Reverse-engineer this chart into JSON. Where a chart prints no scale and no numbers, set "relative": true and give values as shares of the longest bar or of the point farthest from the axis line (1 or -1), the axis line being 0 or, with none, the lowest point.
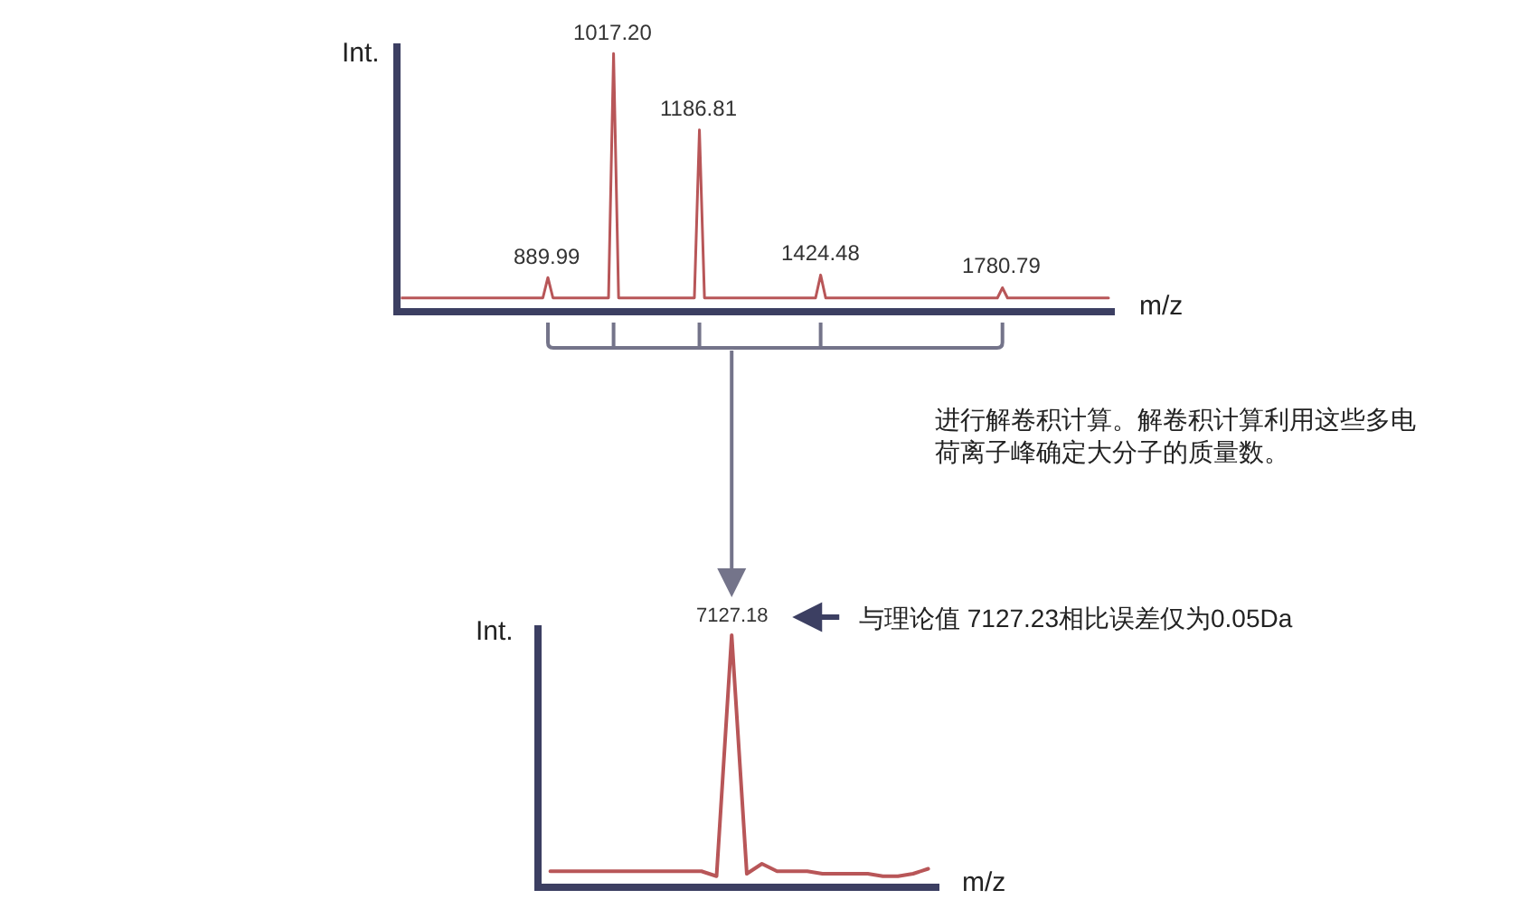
{
  "chart_data": [
    {
      "type": "line",
      "relative": true,
      "xlabel": "m/z",
      "ylabel": "Int.",
      "categories": [
        null,
        null,
        null,
        null,
        null,
        null,
        null,
        null,
        null,
        null,
        null,
        null,
        null,
        null,
        null,
        null,
        null,
        null,
        null,
        null,
        null,
        null,
        null,
        null,
        null,
        null,
        null,
        null,
        null,
        null,
        null,
        null,
        null,
        null,
        null,
        null,
        null,
        null,
        null,
        null,
        null,
        null,
        null,
        null,
        null,
        null,
        null,
        null,
        null,
        null,
        null,
        null,
        null,
        null,
        null,
        null,
        null,
        null,
        null,
        null,
        null,
        null,
        null,
        null,
        null,
        null,
        null,
        null,
        null,
        null,
        null,
        null,
        null,
        null,
        null,
        null,
        null,
        null,
        null,
        null,
        null,
        null,
        null,
        null,
        null,
        null,
        null,
        null,
        null,
        null,
        null,
        null,
        null,
        null,
        null,
        null,
        null,
        null,
        null,
        null,
        null,
        null,
        null,
        null,
        null,
        null,
        null,
        null,
        null,
        null,
        null,
        null,
        null,
        null,
        null,
        null,
        null,
        null,
        null,
        null,
        null,
        null,
        null,
        null,
        null,
        null,
        null,
        null,
        null,
        null,
        null,
        null,
        null,
        null,
        null,
        null,
        null,
        null,
        null,
        null,
        null
      ],
      "series": [
        {
          "color": "#b85658",
          "values": [
            0.04,
            0.04,
            0.04,
            0.04,
            0.04,
            0.04,
            0.04,
            0.04,
            0.04,
            0.04,
            0.04,
            0.04,
            0.04,
            0.04,
            0.04,
            0.04,
            0.04,
            0.04,
            0.04,
            0.04,
            0.04,
            0.04,
            0.04,
            0.04,
            0.04,
            0.04,
            0.04,
            0.04,
            0.04,
            0.12,
            0.04,
            0.04,
            0.04,
            0.04,
            0.04,
            0.04,
            0.04,
            0.04,
            0.04,
            0.04,
            0.04,
            0.04,
            1,
            0.04,
            0.04,
            0.04,
            0.04,
            0.04,
            0.04,
            0.04,
            0.04,
            0.04,
            0.04,
            0.04,
            0.04,
            0.04,
            0.04,
            0.04,
            0.04,
            0.7,
            0.04,
            0.04,
            0.04,
            0.04,
            0.04,
            0.04,
            0.04,
            0.04,
            0.04,
            0.04,
            0.04,
            0.04,
            0.04,
            0.04,
            0.04,
            0.04,
            0.04,
            0.04,
            0.04,
            0.04,
            0.04,
            0.04,
            0.04,
            0.13,
            0.04,
            0.04,
            0.04,
            0.04,
            0.04,
            0.04,
            0.04,
            0.04,
            0.04,
            0.04,
            0.04,
            0.04,
            0.04,
            0.04,
            0.04,
            0.04,
            0.04,
            0.04,
            0.04,
            0.04,
            0.04,
            0.04,
            0.04,
            0.04,
            0.04,
            0.04,
            0.04,
            0.04,
            0.04,
            0.04,
            0.04,
            0.04,
            0.04,
            0.04,
            0.04,
            0.08,
            0.04,
            0.04,
            0.04,
            0.04,
            0.04,
            0.04,
            0.04,
            0.04,
            0.04,
            0.04,
            0.04,
            0.04,
            0.04,
            0.04,
            0.04,
            0.04,
            0.04,
            0.04,
            0.04,
            0.04,
            0.04
          ]
        }
      ],
      "annotations": [
        {
          "text": "889.99",
          "y": 0.12
        },
        {
          "text": "1017.20",
          "y": 1
        },
        {
          "text": "1186.81",
          "y": 0.7
        },
        {
          "text": "1424.48",
          "y": 0.13
        },
        {
          "text": "1780.79",
          "y": 0.08
        },
        "进行解卷积计算。解卷积计算利用这些多电荷离子峰确定大分子的质量数。"
      ]
    },
    {
      "type": "line",
      "relative": true,
      "xlabel": "m/z",
      "ylabel": "Int.",
      "categories": [
        null,
        null,
        null,
        null,
        null,
        null,
        null,
        null,
        null,
        null,
        null,
        null,
        null,
        null,
        null,
        null,
        null,
        null,
        null,
        null,
        null,
        null,
        null,
        null,
        null,
        null
      ],
      "series": [
        {
          "color": "#b85658",
          "values": [
            0.05,
            0.05,
            0.05,
            0.05,
            0.05,
            0.05,
            0.05,
            0.05,
            0.05,
            0.05,
            0.05,
            0.03,
            1,
            0.04,
            0.08,
            0.05,
            0.05,
            0.05,
            0.04,
            0.04,
            0.04,
            0.04,
            0.03,
            0.03,
            0.04,
            0.06
          ]
        }
      ],
      "annotations": [
        {
          "text": "7127.18",
          "y": 1
        },
        "与理论值 7127.23相比误差仅为0.05Da"
      ]
    }
  ]
}
